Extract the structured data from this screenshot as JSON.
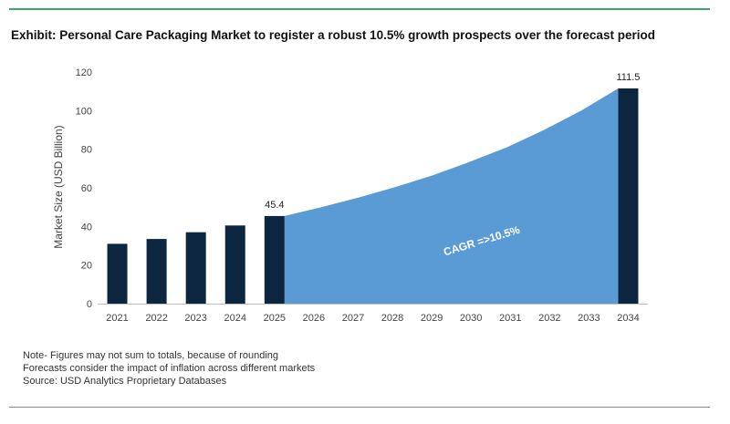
{
  "title": "Exhibit: Personal Care Packaging Market to register a robust 10.5% growth prospects over the forecast period",
  "notes": [
    "Note- Figures may not sum to totals, because of rounding",
    "Forecasts consider the impact of inflation across different markets",
    "Source: USD Analytics Proprietary Databases"
  ],
  "colors": {
    "bar": "#0d2640",
    "area": "#5b9bd5",
    "rule": "#3aa86b"
  },
  "chart_data": {
    "type": "bar",
    "title": "",
    "xlabel": "",
    "ylabel": "Market Size (USD Billion)",
    "ylim": [
      0,
      120
    ],
    "yticks": [
      0,
      20,
      40,
      60,
      80,
      100,
      120
    ],
    "grid": false,
    "categories": [
      "2021",
      "2022",
      "2023",
      "2024",
      "2025",
      "2026",
      "2027",
      "2028",
      "2029",
      "2030",
      "2031",
      "2032",
      "2033",
      "2034"
    ],
    "series": [
      {
        "values": [
          31,
          33.5,
          37,
          40.5,
          45.4,
          null,
          null,
          null,
          null,
          null,
          null,
          null,
          null,
          111.5
        ]
      }
    ],
    "data_labels": [
      {
        "category": "2025",
        "text": "45.4"
      },
      {
        "category": "2034",
        "text": "111.5"
      }
    ],
    "area": {
      "from": "2025",
      "to": "2034",
      "values": [
        45.4,
        50,
        55,
        60.5,
        66.5,
        73.5,
        81,
        90,
        100,
        111.5
      ]
    },
    "annotation": "CAGR =>10.5%"
  }
}
